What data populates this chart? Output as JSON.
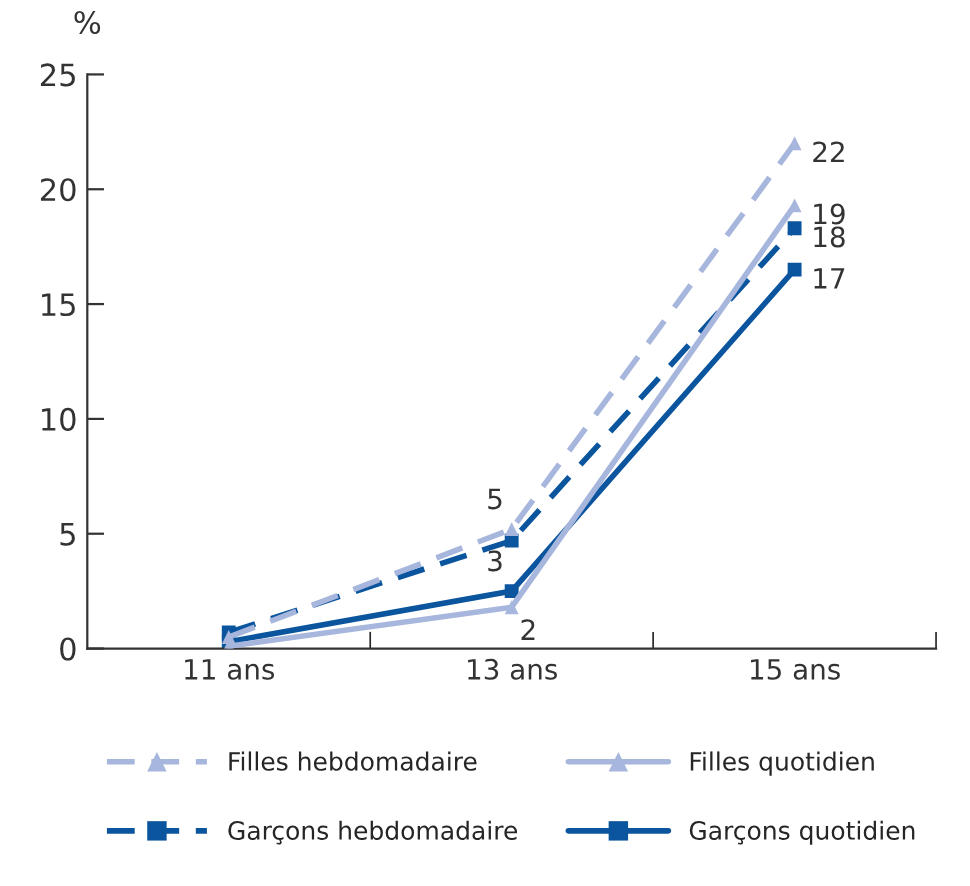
{
  "chart_data": {
    "type": "line",
    "ylabel": "%",
    "categories": [
      "11 ans",
      "13 ans",
      "15 ans"
    ],
    "ylim": [
      0,
      25
    ],
    "yticks": [
      0,
      5,
      10,
      15,
      20,
      25
    ],
    "grid": false,
    "legend": "bottom",
    "series": [
      {
        "name": "Filles hebdomadaire",
        "color": "#a7b6dc",
        "marker": "triangle",
        "line_style": "dashed",
        "values": [
          0.5,
          5.2,
          22
        ],
        "value_labels": [
          null,
          "5",
          "22"
        ]
      },
      {
        "name": "Garçons hebdomadaire",
        "color": "#0b559e",
        "marker": "square",
        "line_style": "dashed",
        "values": [
          0.7,
          4.7,
          18.3
        ],
        "value_labels": [
          null,
          null,
          "18"
        ]
      },
      {
        "name": "Filles quotidien",
        "color": "#a7b6dc",
        "marker": "triangle",
        "line_style": "solid",
        "values": [
          0.1,
          1.8,
          19.3
        ],
        "value_labels": [
          null,
          "2",
          "19"
        ]
      },
      {
        "name": "Garçons quotidien",
        "color": "#0b559e",
        "marker": "square",
        "line_style": "solid",
        "values": [
          0.3,
          2.5,
          16.5
        ],
        "value_labels": [
          null,
          "3",
          "17"
        ]
      }
    ]
  }
}
